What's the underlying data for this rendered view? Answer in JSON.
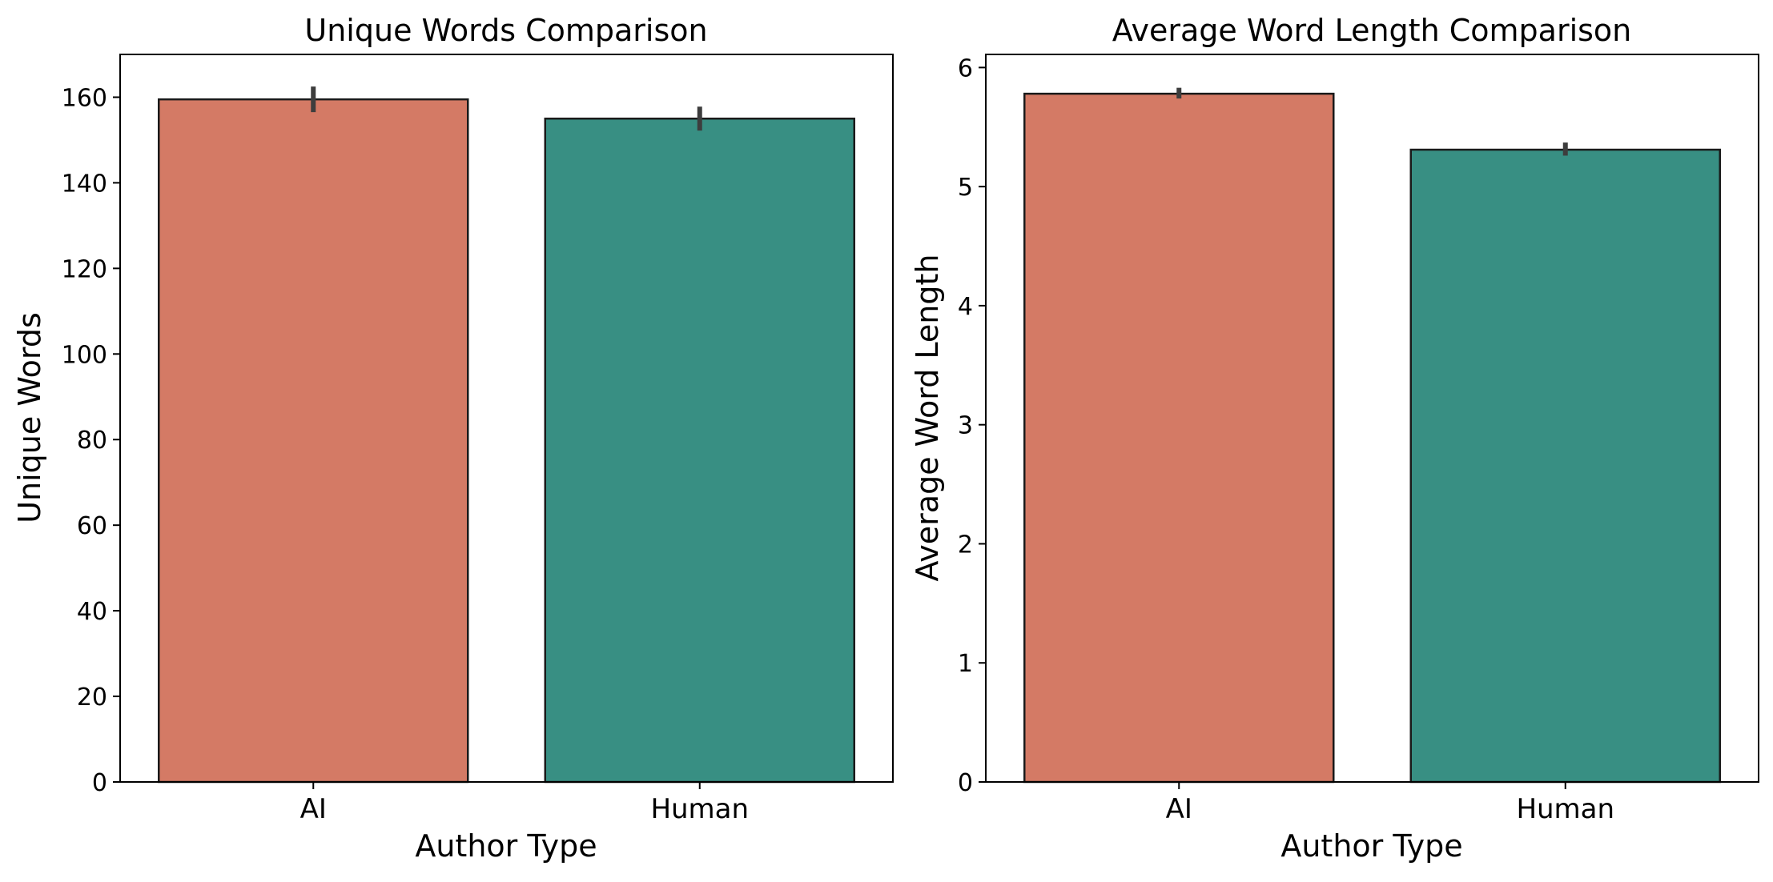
{
  "chart_data": [
    {
      "type": "bar",
      "title": "Unique Words Comparison",
      "xlabel": "Author Type",
      "ylabel": "Unique Words",
      "categories": [
        "AI",
        "Human"
      ],
      "values": [
        159.5,
        155.0
      ],
      "error_low": [
        156.5,
        152.2
      ],
      "error_high": [
        162.5,
        157.8
      ],
      "ylim": [
        0,
        170
      ],
      "yticks": [
        0,
        20,
        40,
        60,
        80,
        100,
        120,
        140,
        160
      ],
      "colors": [
        "#d47a65",
        "#388f83"
      ],
      "grid": false,
      "legend": "none"
    },
    {
      "type": "bar",
      "title": "Average Word Length Comparison",
      "xlabel": "Author Type",
      "ylabel": "Average Word Length",
      "categories": [
        "AI",
        "Human"
      ],
      "values": [
        5.78,
        5.31
      ],
      "error_low": [
        5.74,
        5.26
      ],
      "error_high": [
        5.83,
        5.37
      ],
      "ylim": [
        0,
        6.11
      ],
      "yticks": [
        0,
        1,
        2,
        3,
        4,
        5,
        6
      ],
      "colors": [
        "#d47a65",
        "#388f83"
      ],
      "grid": false,
      "legend": "none"
    }
  ]
}
